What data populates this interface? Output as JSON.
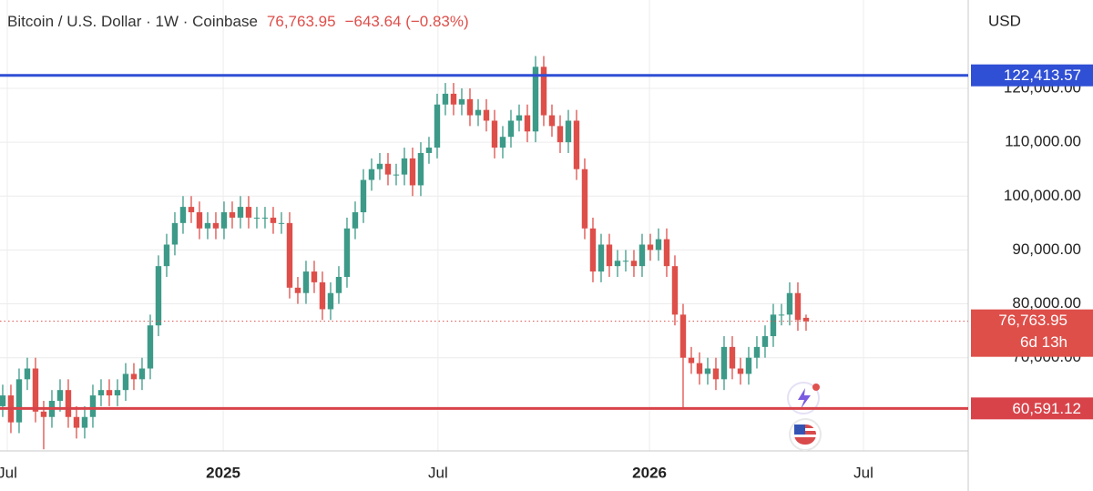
{
  "chart_data": {
    "type": "candlestick",
    "title": "Bitcoin / U.S. Dollar · 1W · Coinbase",
    "currency": "USD",
    "price_label": "76,763.95",
    "change_label": "−643.64 (−0.83%)",
    "countdown": "6d 13h",
    "last_price": {
      "value": 76763.95,
      "label": "76,763.95"
    },
    "up_color": "#3d9a88",
    "down_color": "#de4f4a",
    "lines": [
      {
        "value": 122413.57,
        "label": "122,413.57",
        "color": "#2f4fd4"
      },
      {
        "value": 60591.12,
        "label": "60,591.12",
        "color": "#d8434a"
      }
    ],
    "open": [
      61000,
      63000,
      58000,
      66000,
      68000,
      60000,
      59000,
      62000,
      64000,
      59000,
      57000,
      59000,
      63000,
      64000,
      63000,
      64000,
      67000,
      66000,
      68000,
      76000,
      87000,
      91000,
      95000,
      98000,
      97000,
      94000,
      95000,
      94000,
      97000,
      96000,
      98000,
      96000,
      96000,
      96000,
      95000,
      95000,
      83000,
      82000,
      86000,
      84000,
      79000,
      82000,
      85000,
      94000,
      97000,
      103000,
      105000,
      106000,
      104000,
      104000,
      107000,
      102000,
      108000,
      109000,
      117000,
      119000,
      117000,
      118000,
      115000,
      116000,
      114000,
      109000,
      111000,
      114000,
      115000,
      112000,
      124000,
      115000,
      113000,
      110000,
      114000,
      105000,
      94000,
      86000,
      91000,
      87000,
      88000,
      88000,
      87000,
      91000,
      90000,
      92000,
      87000,
      78000,
      70000,
      69000,
      67000,
      68000,
      66000,
      72000,
      68000,
      67000,
      70000,
      72000,
      74000,
      78000,
      78000,
      82000,
      77407.59
    ],
    "high": [
      65000,
      65000,
      68000,
      70000,
      70000,
      62000,
      64000,
      66000,
      66000,
      61000,
      61000,
      65000,
      66000,
      66000,
      66000,
      69000,
      69000,
      70000,
      78000,
      89000,
      93000,
      97000,
      100000,
      100000,
      99000,
      97000,
      97000,
      99000,
      99000,
      100000,
      100000,
      98000,
      98000,
      98000,
      97000,
      97000,
      85000,
      88000,
      88000,
      86000,
      84000,
      87000,
      96000,
      99000,
      105000,
      107000,
      108000,
      108000,
      106000,
      109000,
      109000,
      110000,
      111000,
      119000,
      121000,
      121000,
      120000,
      120000,
      118000,
      118000,
      116000,
      113000,
      116000,
      117000,
      117000,
      126000,
      126000,
      117000,
      115000,
      116000,
      116000,
      107000,
      96000,
      93000,
      93000,
      90000,
      90000,
      90000,
      93000,
      93000,
      94000,
      94000,
      89000,
      80000,
      72000,
      71000,
      70000,
      70000,
      74000,
      74000,
      70000,
      72000,
      74000,
      76000,
      80000,
      80000,
      84000,
      84000,
      78000
    ],
    "low": [
      59000,
      56000,
      56000,
      64000,
      58000,
      53000,
      57000,
      60000,
      57000,
      55000,
      55000,
      57000,
      61000,
      61000,
      61000,
      62000,
      64000,
      64000,
      66000,
      74000,
      85000,
      89000,
      93000,
      95000,
      92000,
      92000,
      92000,
      92000,
      94000,
      94000,
      94000,
      94000,
      94000,
      93000,
      93000,
      81000,
      80000,
      80000,
      82000,
      77000,
      77000,
      80000,
      83000,
      92000,
      95000,
      101000,
      103000,
      102000,
      102000,
      102000,
      100000,
      100000,
      106000,
      107000,
      115000,
      115000,
      115000,
      113000,
      113000,
      112000,
      107000,
      107000,
      109000,
      112000,
      110000,
      110000,
      113000,
      111000,
      108000,
      108000,
      103000,
      92000,
      84000,
      84000,
      85000,
      85000,
      86000,
      85000,
      85000,
      88000,
      88000,
      85000,
      76000,
      60500,
      67000,
      65000,
      65000,
      64000,
      64000,
      66000,
      65000,
      65000,
      68000,
      70000,
      72000,
      76000,
      76000,
      75000,
      75000
    ],
    "close": [
      63000,
      58000,
      66000,
      68000,
      60000,
      59000,
      62000,
      64000,
      59000,
      57000,
      59000,
      63000,
      64000,
      63000,
      64000,
      67000,
      66000,
      68000,
      76000,
      87000,
      91000,
      95000,
      98000,
      97000,
      94000,
      95000,
      94000,
      97000,
      96000,
      98000,
      96000,
      96000,
      96000,
      95000,
      95000,
      83000,
      82000,
      86000,
      84000,
      79000,
      82000,
      85000,
      94000,
      97000,
      103000,
      105000,
      106000,
      104000,
      104000,
      107000,
      102000,
      108000,
      109000,
      117000,
      119000,
      117000,
      118000,
      115000,
      116000,
      114000,
      109000,
      111000,
      114000,
      115000,
      112000,
      124000,
      115000,
      113000,
      110000,
      114000,
      105000,
      94000,
      86000,
      91000,
      87000,
      88000,
      88000,
      87000,
      91000,
      90000,
      92000,
      87000,
      78000,
      70000,
      69000,
      67000,
      68000,
      66000,
      72000,
      68000,
      67000,
      70000,
      72000,
      74000,
      78000,
      78000,
      82000,
      77000,
      76763.95
    ],
    "xlim": [
      -0.33,
      117.78
    ],
    "xticks": [
      {
        "value": 0.56,
        "label": "Jul"
      },
      {
        "value": 26.9,
        "label": "2025"
      },
      {
        "value": 53.1,
        "label": "Jul"
      },
      {
        "value": 78.9,
        "label": "2026"
      },
      {
        "value": 105,
        "label": "Jul"
      }
    ],
    "ylim": [
      52700,
      136400
    ],
    "yticks": [
      {
        "value": 70000,
        "label": "70,000.00"
      },
      {
        "value": 80000,
        "label": "80,000.00"
      },
      {
        "value": 90000,
        "label": "90,000.00"
      },
      {
        "value": 100000,
        "label": "100,000.00"
      },
      {
        "value": 110000,
        "label": "110,000.00"
      },
      {
        "value": 120000,
        "label": "120,000.00"
      }
    ],
    "grid": true
  }
}
